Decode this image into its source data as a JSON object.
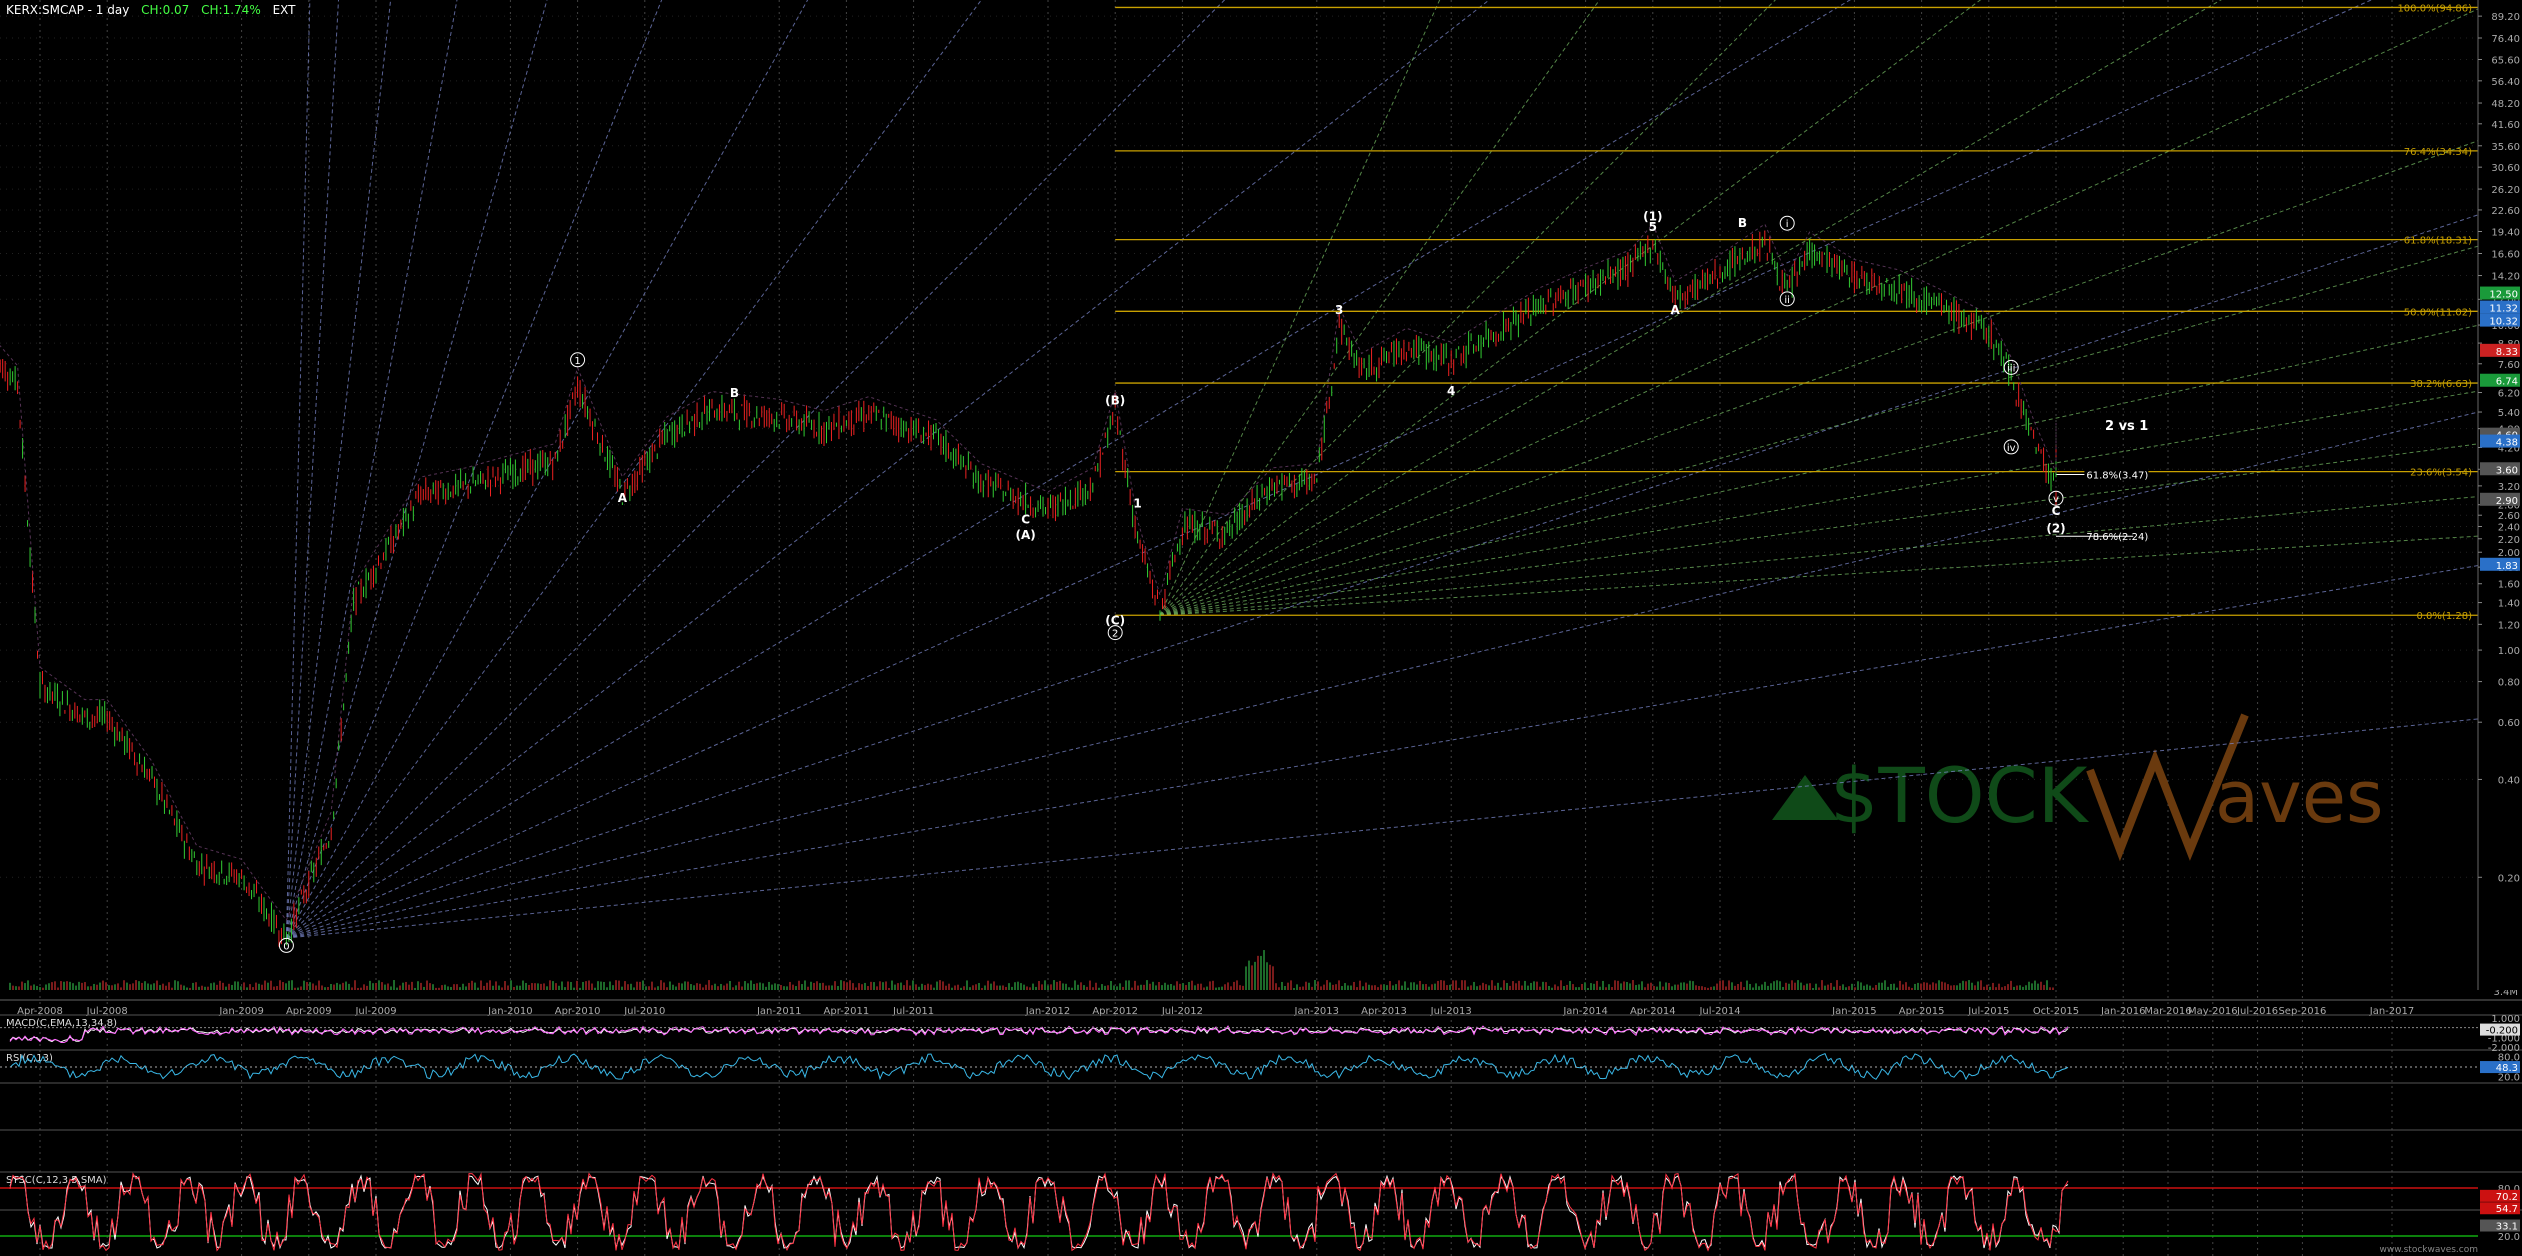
{
  "header": {
    "symbol": "KERX:SMCAP - 1 day",
    "change": "CH:0.07",
    "change_pct": "CH:1.74%",
    "ext": "EXT",
    "symbol_color": "#ffffff",
    "change_color": "#44ff44"
  },
  "watermark": {
    "left": "$TOCK",
    "right": "aves",
    "left_color": "#0f4a18",
    "right_color": "#6a3a0e",
    "url": "www.stockwaves.com"
  },
  "annotation": "2 vs 1",
  "colors": {
    "up": "#33cc33",
    "down": "#ee2222",
    "fib": "#c8a000",
    "grid": "#555555",
    "gann_blue": "#7a86c8",
    "gann_green": "#6aa85a",
    "macd": "#ffffff",
    "signal": "#ff66ff",
    "hist": "#3aa0d0",
    "rsi": "#3ab8e8",
    "stoch_k": "#ffffff",
    "stoch_d": "#ff3344",
    "level_red": "#cc1111",
    "level_green": "#11aa11"
  },
  "chart_data": [
    {
      "type": "candlestick",
      "title": "KERX:SMCAP - 1 day",
      "scale": "log",
      "x_ticks": [
        "Apr-2008",
        "Jul-2008",
        "Jan-2009",
        "Apr-2009",
        "Jul-2009",
        "Jan-2010",
        "Apr-2010",
        "Jul-2010",
        "Jan-2011",
        "Apr-2011",
        "Jul-2011",
        "Jan-2012",
        "Apr-2012",
        "Jul-2012",
        "Jan-2013",
        "Apr-2013",
        "Jul-2013",
        "Jan-2014",
        "Apr-2014",
        "Jul-2014",
        "Jan-2015",
        "Apr-2015",
        "Jul-2015",
        "Oct-2015",
        "Jan-2016",
        "Mar-2016",
        "May-2016",
        "Jul-2016",
        "Sep-2016",
        "Jan-2017"
      ],
      "y_ticks": [
        0.2,
        0.4,
        0.6,
        0.8,
        1.0,
        1.2,
        1.4,
        1.6,
        1.8,
        2.0,
        2.2,
        2.4,
        2.6,
        2.8,
        3.2,
        3.6,
        4.2,
        4.8,
        5.4,
        6.2,
        7.6,
        8.8,
        10.0,
        12.0,
        14.2,
        16.6,
        19.4,
        22.6,
        26.2,
        30.6,
        35.6,
        41.6,
        48.2,
        56.4,
        65.6,
        76.4,
        89.2
      ],
      "y_tick_labels": [
        "0.20",
        "0.40",
        "0.60",
        "0.80",
        "1.00",
        "1.20",
        "1.40",
        "1.60",
        "1.80",
        "2.00",
        "2.20",
        "2.40",
        "2.60",
        "2.80",
        "3.20",
        "3.60",
        "4.20",
        "4.80",
        "5.40",
        "6.20",
        "7.60",
        "8.80",
        "10.00",
        "12.00",
        "14.20",
        "16.60",
        "19.40",
        "22.60",
        "26.20",
        "30.60",
        "35.60",
        "41.60",
        "48.20",
        "56.40",
        "65.60",
        "76.40",
        "89.20"
      ],
      "ylim": [
        0.09,
        100
      ],
      "price_path": [
        {
          "x": "Feb-2008",
          "y": 7.9
        },
        {
          "x": "Mar-2008",
          "y": 6.6
        },
        {
          "x": "Apr-2008",
          "y": 0.78
        },
        {
          "x": "Jun-2008",
          "y": 0.62
        },
        {
          "x": "Jul-2008",
          "y": 0.62
        },
        {
          "x": "Sep-2008",
          "y": 0.4
        },
        {
          "x": "Nov-2008",
          "y": 0.22
        },
        {
          "x": "Jan-2009",
          "y": 0.2
        },
        {
          "x": "Feb-2009",
          "y": 0.16
        },
        {
          "x": "Mar-2009",
          "y": 0.13
        },
        {
          "x": "May-2009",
          "y": 0.28
        },
        {
          "x": "Jun-2009",
          "y": 1.4
        },
        {
          "x": "Jul-2009",
          "y": 1.8
        },
        {
          "x": "Sep-2009",
          "y": 3.0
        },
        {
          "x": "Nov-2009",
          "y": 3.2
        },
        {
          "x": "Jan-2010",
          "y": 3.5
        },
        {
          "x": "Mar-2010",
          "y": 3.8
        },
        {
          "x": "Apr-2010",
          "y": 6.5
        },
        {
          "x": "Jun-2010",
          "y": 3.0
        },
        {
          "x": "Aug-2010",
          "y": 4.6
        },
        {
          "x": "Oct-2010",
          "y": 5.5
        },
        {
          "x": "Jan-2011",
          "y": 5.2
        },
        {
          "x": "Mar-2011",
          "y": 4.8
        },
        {
          "x": "May-2011",
          "y": 5.3
        },
        {
          "x": "Aug-2011",
          "y": 4.5
        },
        {
          "x": "Oct-2011",
          "y": 3.3
        },
        {
          "x": "Jan-2012",
          "y": 2.7
        },
        {
          "x": "Mar-2012",
          "y": 3.2
        },
        {
          "x": "Apr-2012",
          "y": 5.5
        },
        {
          "x": "May-2012",
          "y": 2.2
        },
        {
          "x": "Jun-2012",
          "y": 1.3
        },
        {
          "x": "Jul-2012",
          "y": 2.4
        },
        {
          "x": "Sep-2012",
          "y": 2.3
        },
        {
          "x": "Nov-2012",
          "y": 3.2
        },
        {
          "x": "Jan-2013",
          "y": 3.3
        },
        {
          "x": "Feb-2013",
          "y": 10.0
        },
        {
          "x": "Mar-2013",
          "y": 7.2
        },
        {
          "x": "May-2013",
          "y": 8.6
        },
        {
          "x": "Jul-2013",
          "y": 7.8
        },
        {
          "x": "Sep-2013",
          "y": 9.5
        },
        {
          "x": "Nov-2013",
          "y": 11.5
        },
        {
          "x": "Jan-2014",
          "y": 13.2
        },
        {
          "x": "Mar-2014",
          "y": 15.0
        },
        {
          "x": "Apr-2014",
          "y": 18.0
        },
        {
          "x": "May-2014",
          "y": 12.0
        },
        {
          "x": "Jul-2014",
          "y": 14.5
        },
        {
          "x": "Sep-2014",
          "y": 18.0
        },
        {
          "x": "Oct-2014",
          "y": 12.5
        },
        {
          "x": "Nov-2014",
          "y": 17.0
        },
        {
          "x": "Jan-2015",
          "y": 14.0
        },
        {
          "x": "Mar-2015",
          "y": 13.0
        },
        {
          "x": "May-2015",
          "y": 11.2
        },
        {
          "x": "Jul-2015",
          "y": 9.5
        },
        {
          "x": "Aug-2015",
          "y": 7.0
        },
        {
          "x": "Sep-2015",
          "y": 4.5
        },
        {
          "x": "Oct-2015",
          "y": 3.1
        },
        {
          "x": "Oct-2015",
          "y": 4.4
        }
      ],
      "fib_levels": [
        {
          "label": "100.0%(94.86)",
          "value": 94.86
        },
        {
          "label": "76.4%(34.34)",
          "value": 34.34
        },
        {
          "label": "61.8%(18.31)",
          "value": 18.31
        },
        {
          "label": "50.0%(11.02)",
          "value": 11.02
        },
        {
          "label": "38.2%(6.63)",
          "value": 6.63
        },
        {
          "label": "23.6%(3.54)",
          "value": 3.54
        },
        {
          "label": "0.0%(1.28)",
          "value": 1.28
        }
      ],
      "fib_extra": [
        {
          "label": "61.8%(3.47)",
          "value": 3.47
        },
        {
          "label": "78.6%(2.24)",
          "value": 2.24
        }
      ],
      "price_labels": [
        {
          "text": "12.50",
          "value": 12.5,
          "color": "#1a9a3a"
        },
        {
          "text": "11.32",
          "value": 11.32,
          "color": "#2a70c8"
        },
        {
          "text": "10.32",
          "value": 10.32,
          "color": "#2a70c8"
        },
        {
          "text": "8.33",
          "value": 8.33,
          "color": "#cc2222"
        },
        {
          "text": "6.74",
          "value": 6.74,
          "color": "#1a9a3a"
        },
        {
          "text": "4.60",
          "value": 4.6,
          "color": "#555555"
        },
        {
          "text": "4.38",
          "value": 4.38,
          "color": "#2a70c8"
        },
        {
          "text": "3.60",
          "value": 3.6,
          "color": "#555555"
        },
        {
          "text": "2.90",
          "value": 2.9,
          "color": "#555555"
        },
        {
          "text": "1.83",
          "value": 1.83,
          "color": "#2a70c8"
        }
      ],
      "wave_labels": [
        {
          "text": "0",
          "x": "Mar-2009",
          "y": 0.12,
          "circled": true
        },
        {
          "text": "1",
          "x": "Apr-2010",
          "y": 7.6,
          "circled": true
        },
        {
          "text": "A",
          "x": "Jun-2010",
          "y": 2.85,
          "circled": false
        },
        {
          "text": "B",
          "x": "Nov-2010",
          "y": 6.0,
          "circled": false
        },
        {
          "text": "C",
          "x": "Dec-2011",
          "y": 2.45,
          "circled": false
        },
        {
          "text": "(A)",
          "x": "Dec-2011",
          "y": 2.2,
          "circled": false
        },
        {
          "text": "(B)",
          "x": "Apr-2012",
          "y": 5.7,
          "circled": false
        },
        {
          "text": "1",
          "x": "May-2012",
          "y": 2.75,
          "circled": false
        },
        {
          "text": "(C)",
          "x": "Apr-2012",
          "y": 1.2,
          "circled": false
        },
        {
          "text": "2",
          "x": "Apr-2012",
          "y": 1.1,
          "circled": true
        },
        {
          "text": "3",
          "x": "Feb-2013",
          "y": 10.8,
          "circled": false
        },
        {
          "text": "4",
          "x": "Jul-2013",
          "y": 6.1,
          "circled": false
        },
        {
          "text": "(1)",
          "x": "Apr-2014",
          "y": 21.0,
          "circled": false
        },
        {
          "text": "5",
          "x": "Apr-2014",
          "y": 19.5,
          "circled": false
        },
        {
          "text": "A",
          "x": "May-2014",
          "y": 10.8,
          "circled": false
        },
        {
          "text": "B",
          "x": "Aug-2014",
          "y": 20.0,
          "circled": false
        },
        {
          "text": "i",
          "x": "Oct-2014",
          "y": 20.0,
          "circled": true
        },
        {
          "text": "ii",
          "x": "Oct-2014",
          "y": 11.7,
          "circled": true
        },
        {
          "text": "iii",
          "x": "Aug-2015",
          "y": 7.2,
          "circled": true
        },
        {
          "text": "iv",
          "x": "Aug-2015",
          "y": 4.1,
          "circled": true
        },
        {
          "text": "v",
          "x": "Oct-2015",
          "y": 2.85,
          "circled": true
        },
        {
          "text": "C",
          "x": "Oct-2015",
          "y": 2.6,
          "circled": false
        },
        {
          "text": "(2)",
          "x": "Oct-2015",
          "y": 2.3,
          "circled": false
        }
      ],
      "volume_label": "3.4M"
    },
    {
      "type": "line",
      "title": "MACD(C,EMA,13,34,8)",
      "series": [
        {
          "name": "MACD(C,EMA,13,34,8)"
        }
      ],
      "y_tick_labels": [
        "1.000",
        "0.000",
        "-1.000",
        "-2.000"
      ],
      "y_ticks": [
        1.0,
        0.0,
        -1.0,
        -2.0
      ],
      "ylim": [
        -2.3,
        1.3
      ],
      "current_label": "-0.200"
    },
    {
      "type": "line",
      "title": "RSI(C,13)",
      "y_ticks": [
        80,
        20
      ],
      "y_tick_labels": [
        "80.0",
        "20.0"
      ],
      "ylim": [
        0,
        100
      ],
      "current_label": "48.3"
    },
    {
      "type": "line",
      "title": "STSC(C,12,3,5,SMA)",
      "y_ticks": [
        80,
        20
      ],
      "y_tick_labels": [
        "80.0",
        "20.0"
      ],
      "ylim": [
        0,
        100
      ],
      "current_labels": [
        {
          "text": "70.2",
          "value": 70.2,
          "color": "#cc1111"
        },
        {
          "text": "54.7",
          "value": 54.7,
          "color": "#cc1111"
        },
        {
          "text": "33.1",
          "value": 33.1,
          "color": "#555555"
        }
      ]
    }
  ]
}
